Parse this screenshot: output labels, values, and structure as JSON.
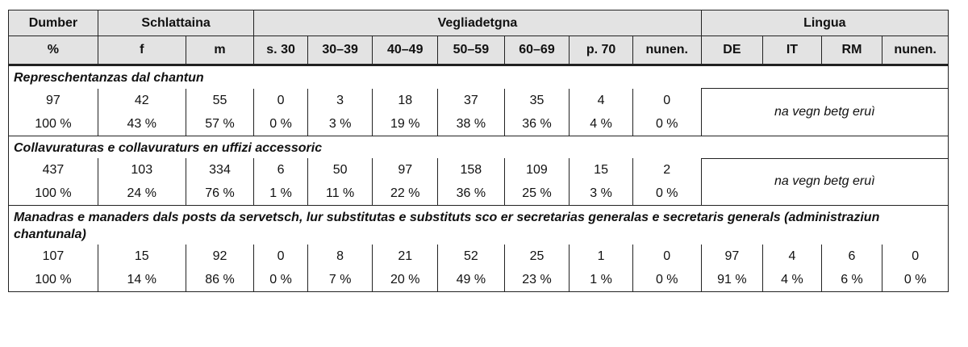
{
  "table": {
    "header_groups": [
      "Dumber",
      "Schlattaina",
      "Vegliadetgna",
      "Lingua"
    ],
    "columns": [
      "%",
      "f",
      "m",
      "s. 30",
      "30–39",
      "40–49",
      "50–59",
      "60–69",
      "p. 70",
      "nunen.",
      "DE",
      "IT",
      "RM",
      "nunen."
    ],
    "sections": [
      {
        "title": "Represchentanzas dal chantun",
        "counts": [
          97,
          42,
          55,
          0,
          3,
          18,
          37,
          35,
          4,
          0
        ],
        "percents": [
          "100 %",
          "43 %",
          "57 %",
          "0 %",
          "3 %",
          "19 %",
          "38 %",
          "36 %",
          "4 %",
          "0 %"
        ],
        "note": "na vegn betg eruì"
      },
      {
        "title": "Collavuraturas e collavuraturs en uffizi accessoric",
        "counts": [
          437,
          103,
          334,
          6,
          50,
          97,
          158,
          109,
          15,
          2
        ],
        "percents": [
          "100 %",
          "24 %",
          "76 %",
          "1 %",
          "11 %",
          "22 %",
          "36 %",
          "25 %",
          "3 %",
          "0 %"
        ],
        "note": "na vegn betg eruì"
      },
      {
        "title": "Manadras e manaders dals posts da servetsch, lur substitutas e substituts sco er secretarias generalas e secretaris generals (administraziun chantunala)",
        "counts": [
          107,
          15,
          92,
          0,
          8,
          21,
          52,
          25,
          1,
          0,
          97,
          4,
          6,
          0
        ],
        "percents": [
          "100 %",
          "14 %",
          "86 %",
          "0 %",
          "7 %",
          "20 %",
          "49 %",
          "23 %",
          "1 %",
          "0 %",
          "91 %",
          "4 %",
          "6 %",
          "0 %"
        ]
      }
    ]
  }
}
